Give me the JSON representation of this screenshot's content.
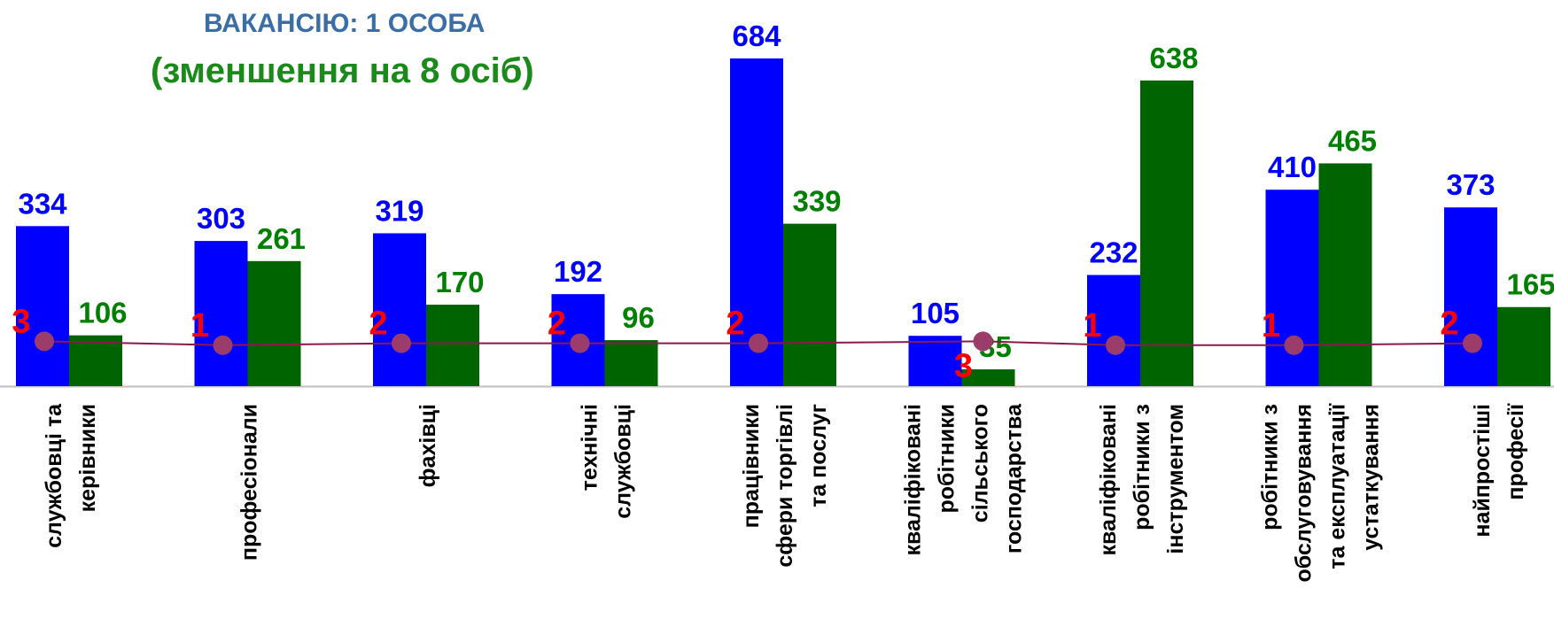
{
  "title": {
    "line1": "ВАКАНСІЮ: 1 ОСОБА",
    "line2": "(зменшення на 8 осіб)"
  },
  "chart_data": {
    "type": "bar",
    "categories": [
      [
        "службовці та",
        "керівники"
      ],
      [
        "професіонали"
      ],
      [
        "фахівці"
      ],
      [
        "технічні",
        "службовці"
      ],
      [
        "працівники",
        "сфери торгівлі",
        "та послуг"
      ],
      [
        "кваліфіковані",
        "робітники",
        "сільського",
        "господарства"
      ],
      [
        "кваліфіковані",
        "робітники з",
        "інструментом"
      ],
      [
        "робітники з",
        "обслуговування",
        "та експлуатації",
        "устаткування"
      ],
      [
        "найпростіші",
        "професії"
      ]
    ],
    "series": [
      {
        "values": [
          334,
          303,
          319,
          192,
          684,
          105,
          232,
          410,
          373
        ],
        "color": "#0000ff",
        "label_color": "#0000ff"
      },
      {
        "values": [
          106,
          261,
          170,
          96,
          339,
          35,
          638,
          465,
          165
        ],
        "color": "#006400",
        "label_color": "#008000"
      }
    ],
    "line": {
      "values": [
        3,
        1,
        2,
        2,
        2,
        3,
        1,
        1,
        2
      ],
      "line_color": "#8b1a4a",
      "marker_color": "#9c3c6a",
      "label_color": "#ff0000"
    },
    "ylim": [
      0,
      750
    ],
    "legend": "none",
    "grid": false
  }
}
